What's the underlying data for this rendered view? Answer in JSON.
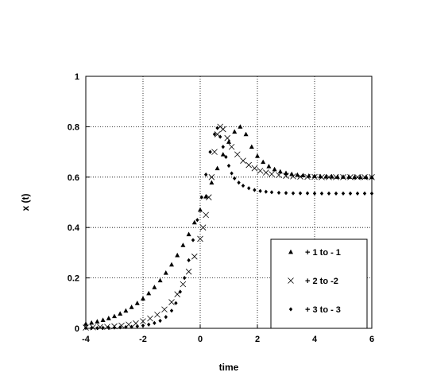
{
  "chart_data": {
    "type": "scatter",
    "xlabel": "time",
    "ylabel": "x (t)",
    "xlim": [
      -4,
      6
    ],
    "ylim": [
      0,
      1
    ],
    "xticks": [
      "-4",
      "-2",
      "0",
      "2",
      "4",
      "6"
    ],
    "yticks": [
      "0",
      "0.2",
      "0.4",
      "0.6",
      "0.8",
      "1"
    ],
    "grid": true,
    "legend_position": "bottom-right",
    "series": [
      {
        "name": "+ 1  to  - 1",
        "marker": "triangle",
        "points": [
          [
            -4,
            0.018
          ],
          [
            -3.8,
            0.022
          ],
          [
            -3.6,
            0.027
          ],
          [
            -3.4,
            0.033
          ],
          [
            -3.2,
            0.04
          ],
          [
            -3,
            0.048
          ],
          [
            -2.8,
            0.058
          ],
          [
            -2.6,
            0.07
          ],
          [
            -2.4,
            0.084
          ],
          [
            -2.2,
            0.1
          ],
          [
            -2,
            0.118
          ],
          [
            -1.8,
            0.139
          ],
          [
            -1.6,
            0.163
          ],
          [
            -1.4,
            0.19
          ],
          [
            -1.2,
            0.22
          ],
          [
            -1,
            0.253
          ],
          [
            -0.8,
            0.29
          ],
          [
            -0.6,
            0.33
          ],
          [
            -0.4,
            0.373
          ],
          [
            -0.2,
            0.42
          ],
          [
            0,
            0.47
          ],
          [
            0.2,
            0.523
          ],
          [
            0.4,
            0.578
          ],
          [
            0.6,
            0.635
          ],
          [
            0.8,
            0.69
          ],
          [
            1,
            0.74
          ],
          [
            1.2,
            0.78
          ],
          [
            1.4,
            0.8
          ],
          [
            1.6,
            0.77
          ],
          [
            1.8,
            0.72
          ],
          [
            2,
            0.684
          ],
          [
            2.2,
            0.66
          ],
          [
            2.4,
            0.643
          ],
          [
            2.6,
            0.631
          ],
          [
            2.8,
            0.622
          ],
          [
            3,
            0.616
          ],
          [
            3.2,
            0.612
          ],
          [
            3.4,
            0.609
          ],
          [
            3.6,
            0.607
          ],
          [
            3.8,
            0.605
          ],
          [
            4,
            0.604
          ],
          [
            4.2,
            0.603
          ],
          [
            4.4,
            0.602
          ],
          [
            4.6,
            0.602
          ],
          [
            4.8,
            0.601
          ],
          [
            5,
            0.601
          ],
          [
            5.2,
            0.601
          ],
          [
            5.4,
            0.6
          ],
          [
            5.6,
            0.6
          ],
          [
            5.8,
            0.6
          ],
          [
            6,
            0.6
          ]
        ]
      },
      {
        "name": "+ 2  to  -2",
        "marker": "x",
        "points": [
          [
            -4,
            0.003
          ],
          [
            -3.75,
            0.004
          ],
          [
            -3.5,
            0.005
          ],
          [
            -3.25,
            0.006
          ],
          [
            -3,
            0.008
          ],
          [
            -2.75,
            0.011
          ],
          [
            -2.5,
            0.015
          ],
          [
            -2.25,
            0.02
          ],
          [
            -2,
            0.028
          ],
          [
            -1.75,
            0.039
          ],
          [
            -1.5,
            0.054
          ],
          [
            -1.25,
            0.075
          ],
          [
            -1.0,
            0.104
          ],
          [
            -0.8,
            0.135
          ],
          [
            -0.6,
            0.175
          ],
          [
            -0.4,
            0.225
          ],
          [
            -0.2,
            0.285
          ],
          [
            0,
            0.355
          ],
          [
            0.1,
            0.4
          ],
          [
            0.2,
            0.45
          ],
          [
            0.3,
            0.52
          ],
          [
            0.4,
            0.6
          ],
          [
            0.5,
            0.7
          ],
          [
            0.6,
            0.77
          ],
          [
            0.7,
            0.8
          ],
          [
            0.8,
            0.79
          ],
          [
            0.95,
            0.755
          ],
          [
            1.1,
            0.72
          ],
          [
            1.3,
            0.69
          ],
          [
            1.5,
            0.665
          ],
          [
            1.7,
            0.648
          ],
          [
            1.9,
            0.635
          ],
          [
            2.1,
            0.625
          ],
          [
            2.3,
            0.618
          ],
          [
            2.5,
            0.612
          ],
          [
            2.75,
            0.608
          ],
          [
            3,
            0.605
          ],
          [
            3.25,
            0.603
          ],
          [
            3.5,
            0.602
          ],
          [
            3.75,
            0.601
          ],
          [
            4,
            0.601
          ],
          [
            4.25,
            0.6
          ],
          [
            4.5,
            0.6
          ],
          [
            4.75,
            0.6
          ],
          [
            5,
            0.6
          ],
          [
            5.25,
            0.6
          ],
          [
            5.5,
            0.6
          ],
          [
            5.75,
            0.6
          ],
          [
            6,
            0.6
          ]
        ]
      },
      {
        "name": "+ 3  to  - 3",
        "marker": "diamond",
        "points": [
          [
            -4,
            0.001
          ],
          [
            -3.8,
            0.001
          ],
          [
            -3.6,
            0.001
          ],
          [
            -3.4,
            0.002
          ],
          [
            -3.2,
            0.002
          ],
          [
            -3,
            0.003
          ],
          [
            -2.8,
            0.004
          ],
          [
            -2.6,
            0.005
          ],
          [
            -2.4,
            0.006
          ],
          [
            -2.2,
            0.008
          ],
          [
            -2,
            0.011
          ],
          [
            -1.8,
            0.015
          ],
          [
            -1.6,
            0.021
          ],
          [
            -1.4,
            0.03
          ],
          [
            -1.2,
            0.045
          ],
          [
            -1.0,
            0.07
          ],
          [
            -0.85,
            0.1
          ],
          [
            -0.7,
            0.145
          ],
          [
            -0.55,
            0.2
          ],
          [
            -0.4,
            0.27
          ],
          [
            -0.25,
            0.35
          ],
          [
            -0.1,
            0.43
          ],
          [
            0.05,
            0.52
          ],
          [
            0.2,
            0.61
          ],
          [
            0.35,
            0.7
          ],
          [
            0.5,
            0.77
          ],
          [
            0.6,
            0.795
          ],
          [
            0.7,
            0.76
          ],
          [
            0.8,
            0.72
          ],
          [
            0.9,
            0.68
          ],
          [
            1.0,
            0.645
          ],
          [
            1.1,
            0.615
          ],
          [
            1.2,
            0.595
          ],
          [
            1.35,
            0.578
          ],
          [
            1.5,
            0.566
          ],
          [
            1.7,
            0.556
          ],
          [
            1.9,
            0.549
          ],
          [
            2.1,
            0.545
          ],
          [
            2.3,
            0.542
          ],
          [
            2.5,
            0.54
          ],
          [
            2.75,
            0.538
          ],
          [
            3,
            0.537
          ],
          [
            3.25,
            0.536
          ],
          [
            3.5,
            0.536
          ],
          [
            3.75,
            0.536
          ],
          [
            4,
            0.535
          ],
          [
            4.25,
            0.535
          ],
          [
            4.5,
            0.535
          ],
          [
            4.75,
            0.535
          ],
          [
            5,
            0.535
          ],
          [
            5.25,
            0.535
          ],
          [
            5.5,
            0.535
          ],
          [
            5.75,
            0.535
          ],
          [
            6,
            0.535
          ]
        ]
      }
    ]
  }
}
